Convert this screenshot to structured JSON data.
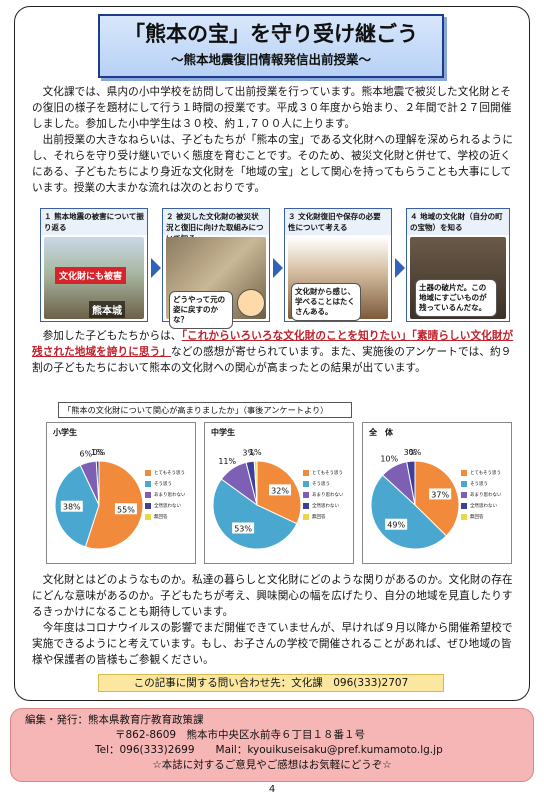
{
  "title": {
    "main": "「熊本の宝」を守り受け継ごう",
    "sub": "〜熊本地震復旧情報発信出前授業〜"
  },
  "paragraphs": {
    "p1": "文化課では、県内の小中学校を訪問して出前授業を行っています。熊本地震で被災した文化財とその復旧の様子を題材にして行う１時間の授業です。平成３０年度から始まり、２年間で計２７回開催しました。参加した小中学生は３０校、約１,７００人に上ります。",
    "p2": "出前授業の大きなねらいは、子どもたちが「熊本の宝」である文化財への理解を深められるようにし、それらを守り受け継いでいく態度を育むことです。そのため、被災文化財と併せて、学校の近くにある、子どもたちにより身近な文化財を「地域の宝」として関心を持ってもらうことも大事にしています。授業の大まかな流れは次のとおりです。",
    "p3_before": "参加した子どもたちからは、",
    "p3_hl1": "「これからいろいろな文化財のことを知りたい」「素晴らしい文化財が残された地域を誇りに思う」",
    "p3_after": "などの感想が寄せられています。また、実施後のアンケートでは、約９割の子どもたちにおいて熊本の文化財への関心が高まったとの結果が出ています。",
    "p4": "文化財とはどのようなものか。私達の暮らしと文化財にどのような関りがあるのか。文化財の存在にどんな意味があるのか。子どもたちが考え、興味関心の幅を広げたり、自分の地域を見直したりするきっかけになることも期待しています。",
    "p5": "今年度はコロナウイルスの影響でまだ開催できていませんが、早ければ９月以降から開催希望校で実施できるようにと考えています。もし、お子さんの学校で開催されることがあれば、ぜひ地域の皆様や保護者の皆様もご参観ください。"
  },
  "steps": [
    {
      "head": "１ 熊本地震の被害について振り返る",
      "tag": "文化財にも被害",
      "tag2": "熊本城"
    },
    {
      "head": "２ 被災した文化財の被災状況と復旧に向けた取組みについて知る",
      "caption": "どうやって元の姿に戻すのかな？"
    },
    {
      "head": "３ 文化財復旧や保存の必要性について考える",
      "caption": "文化財から感じ、学べることはたくさんある。"
    },
    {
      "head": "４ 地域の文化財（自分の町の宝物）を知る",
      "caption": "土器の破片だ。この地域にすごいものが残っているんだな。"
    }
  ],
  "survey": {
    "label": "「熊本の文化財について関心が高まりましたか」（事後アンケートより）"
  },
  "chart_data": [
    {
      "type": "pie",
      "title": "小学生",
      "categories": [
        "とてもそう思う",
        "そう思う",
        "あまり思わない",
        "全然思わない",
        "無回答"
      ],
      "values": [
        55,
        38,
        6,
        1,
        0
      ],
      "colors": [
        "#f28a3c",
        "#4aa7cf",
        "#7d5fb4",
        "#3d3f9a",
        "#e6d84a"
      ]
    },
    {
      "type": "pie",
      "title": "中学生",
      "categories": [
        "とてもそう思う",
        "そう思う",
        "あまり思わない",
        "全然思わない",
        "無回答"
      ],
      "values": [
        32,
        53,
        11,
        3,
        1
      ],
      "colors": [
        "#f28a3c",
        "#4aa7cf",
        "#7d5fb4",
        "#3d3f9a",
        "#e6d84a"
      ]
    },
    {
      "type": "pie",
      "title": "全　体",
      "categories": [
        "とてもそう思う",
        "そう思う",
        "あまり思わない",
        "全然思わない",
        "無回答"
      ],
      "values": [
        37,
        49,
        10,
        3,
        0
      ],
      "colors": [
        "#f28a3c",
        "#4aa7cf",
        "#7d5fb4",
        "#3d3f9a",
        "#e6d84a"
      ]
    }
  ],
  "contact": "この記事に関する問い合わせ先：文化課　096(333)2707",
  "footer": {
    "line1": "編集・発行：熊本県教育庁教育政策課",
    "line2": "〒862-8609　熊本市中央区水前寺６丁目１８番１号",
    "line3": "Tel：096(333)2699　　Mail：kyouikuseisaku@pref.kumamoto.lg.jp",
    "line4": "☆本誌に対するご意見やご感想はお気軽にどうぞ☆"
  },
  "page_number": "4"
}
